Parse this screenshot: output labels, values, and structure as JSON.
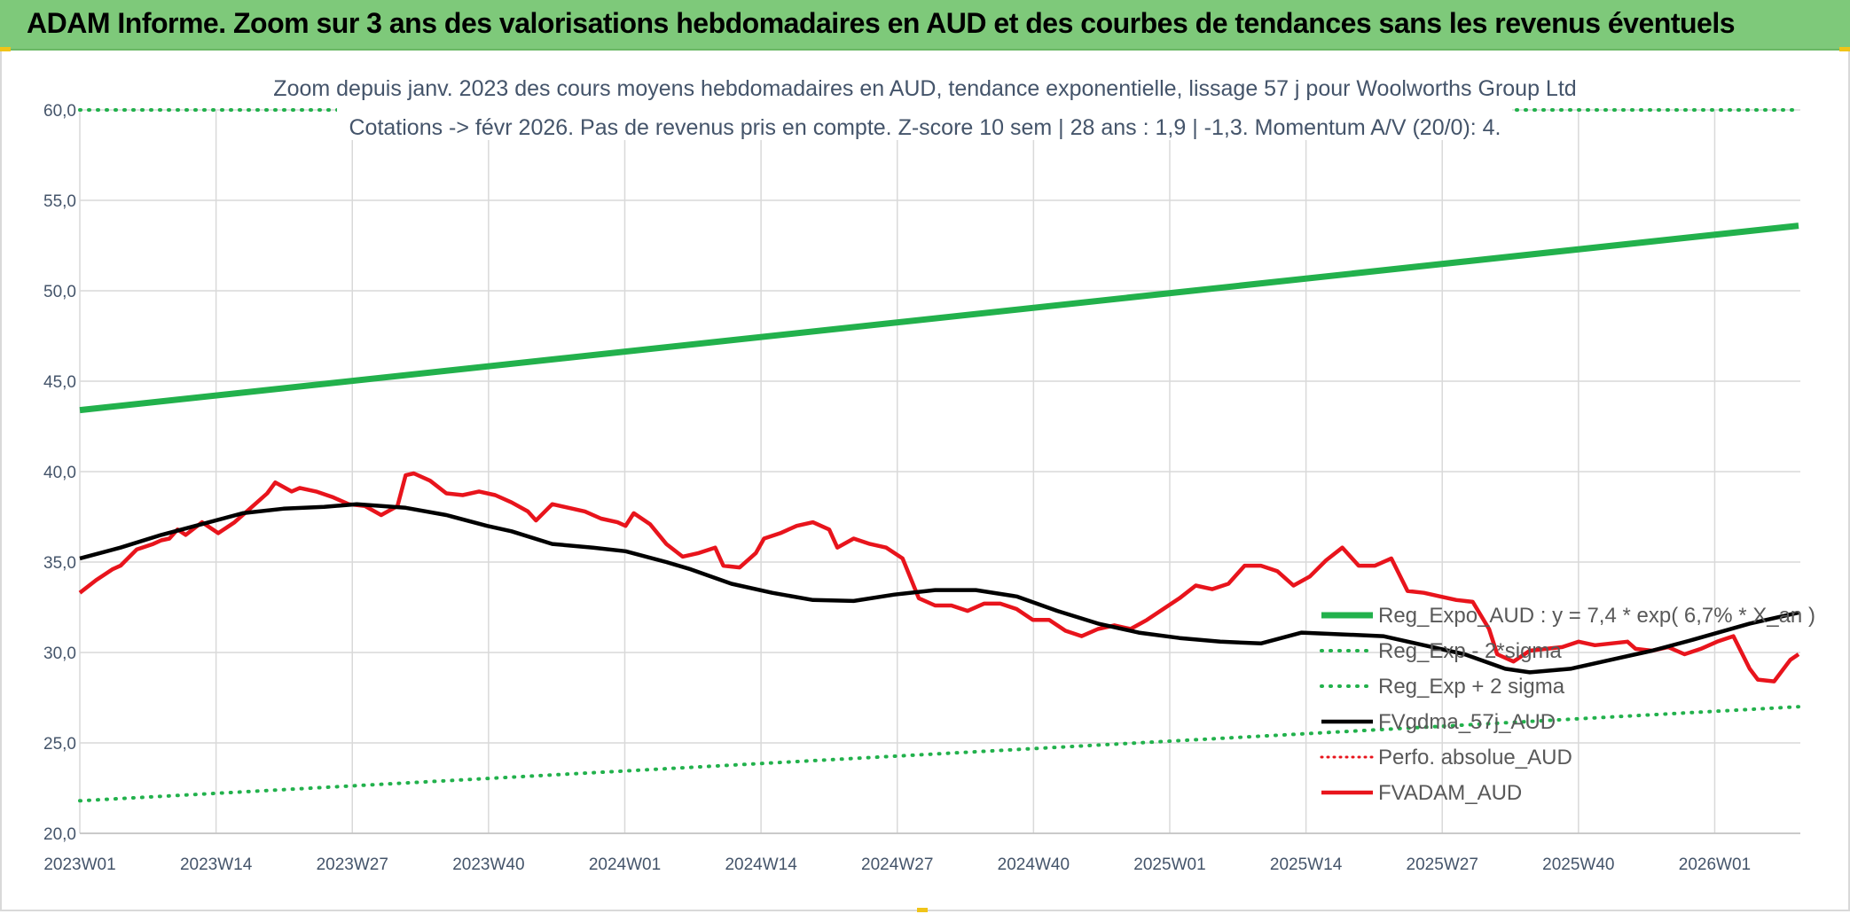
{
  "header": {
    "title": "ADAM Informe. Zoom sur 3 ans des valorisations hebdomadaires en AUD et des courbes de tendances sans les revenus éventuels"
  },
  "colors": {
    "header_bg": "#7ec97a",
    "reg_expo": "#22b14c",
    "sigma": "#22b14c",
    "fvgdma": "#000000",
    "perfo": "#e8141c",
    "fvadam": "#e8141c",
    "grid": "#d9d9d9",
    "text": "#44546a"
  },
  "chart_data": {
    "type": "line",
    "title": "Zoom depuis janv. 2023 des cours moyens hebdomadaires en AUD, tendance exponentielle, lissage 57 j pour Woolworths Group Ltd",
    "subtitle": "Cotations -> févr 2026. Pas de revenus pris en compte. Z-score 10 sem | 28 ans : 1,9 | -1,3. Momentum A/V (20/0): 4.",
    "xlabel": "",
    "ylabel": "",
    "ylim": [
      20,
      60
    ],
    "y_ticks": [
      "20,0",
      "25,0",
      "30,0",
      "35,0",
      "40,0",
      "45,0",
      "50,0",
      "55,0",
      "60,0"
    ],
    "x_ticks": [
      "2023W01",
      "2023W14",
      "2023W27",
      "2023W40",
      "2024W01",
      "2024W14",
      "2024W27",
      "2024W40",
      "2025W01",
      "2025W14",
      "2025W27",
      "2025W40",
      "2026W01"
    ],
    "week_count": 165,
    "grid": true,
    "legend_position": "right",
    "series": [
      {
        "name": "Reg_Expo_AUD : y = 7,4 * exp( 6,7% * X_an )",
        "style": "solid-thick",
        "points": [
          [
            0,
            43.4
          ],
          [
            164,
            53.6
          ]
        ]
      },
      {
        "name": "Reg_Exp - 2*sigma",
        "style": "dotted",
        "points": [
          [
            0,
            21.8
          ],
          [
            164,
            27.0
          ]
        ]
      },
      {
        "name": "Reg_Exp + 2 sigma",
        "style": "dotted",
        "points": [
          [
            0,
            60.0
          ],
          [
            164,
            60.0
          ]
        ]
      },
      {
        "name": "FVgdma_57j_AUD",
        "style": "solid-black",
        "points": [
          [
            0,
            35.2
          ],
          [
            5,
            35.8
          ],
          [
            10,
            36.5
          ],
          [
            15,
            37.1
          ],
          [
            20,
            37.7
          ],
          [
            25,
            37.95
          ],
          [
            30,
            38.05
          ],
          [
            34,
            38.2
          ],
          [
            40,
            38.0
          ],
          [
            45,
            37.6
          ],
          [
            50,
            37.0
          ],
          [
            53,
            36.7
          ],
          [
            58,
            36.0
          ],
          [
            63,
            35.8
          ],
          [
            67,
            35.6
          ],
          [
            72,
            35.0
          ],
          [
            75,
            34.6
          ],
          [
            80,
            33.8
          ],
          [
            85,
            33.3
          ],
          [
            90,
            32.9
          ],
          [
            95,
            32.85
          ],
          [
            100,
            33.2
          ],
          [
            105,
            33.45
          ],
          [
            110,
            33.45
          ],
          [
            115,
            33.1
          ],
          [
            120,
            32.3
          ],
          [
            125,
            31.6
          ],
          [
            130,
            31.1
          ],
          [
            135,
            30.8
          ],
          [
            140,
            30.6
          ],
          [
            145,
            30.5
          ],
          [
            150,
            31.1
          ],
          [
            155,
            31.0
          ],
          [
            160,
            30.9
          ],
          [
            165,
            30.4
          ],
          [
            170,
            29.9
          ],
          [
            175,
            29.1
          ],
          [
            178,
            28.9
          ],
          [
            183,
            29.1
          ],
          [
            188,
            29.6
          ],
          [
            193,
            30.1
          ],
          [
            198,
            30.7
          ],
          [
            205,
            31.6
          ],
          [
            211,
            32.2
          ]
        ]
      },
      {
        "name": "Perfo. absolue_AUD",
        "style": "dotted-red",
        "points": []
      },
      {
        "name": "FVADAM_AUD",
        "style": "solid-red",
        "points": [
          [
            0,
            33.3
          ],
          [
            2,
            34.0
          ],
          [
            4,
            34.6
          ],
          [
            5,
            34.8
          ],
          [
            7,
            35.7
          ],
          [
            9,
            36.0
          ],
          [
            10,
            36.2
          ],
          [
            11,
            36.3
          ],
          [
            12,
            36.8
          ],
          [
            13,
            36.5
          ],
          [
            15,
            37.2
          ],
          [
            17,
            36.6
          ],
          [
            19,
            37.2
          ],
          [
            21,
            38.0
          ],
          [
            23,
            38.8
          ],
          [
            24,
            39.4
          ],
          [
            26,
            38.9
          ],
          [
            27,
            39.1
          ],
          [
            29,
            38.9
          ],
          [
            31,
            38.6
          ],
          [
            33,
            38.2
          ],
          [
            35,
            38.1
          ],
          [
            37,
            37.6
          ],
          [
            39,
            38.1
          ],
          [
            40,
            39.8
          ],
          [
            41,
            39.9
          ],
          [
            43,
            39.5
          ],
          [
            45,
            38.8
          ],
          [
            47,
            38.7
          ],
          [
            49,
            38.9
          ],
          [
            51,
            38.7
          ],
          [
            53,
            38.3
          ],
          [
            55,
            37.8
          ],
          [
            56,
            37.3
          ],
          [
            58,
            38.2
          ],
          [
            60,
            38.0
          ],
          [
            62,
            37.8
          ],
          [
            64,
            37.4
          ],
          [
            66,
            37.2
          ],
          [
            67,
            37.0
          ],
          [
            68,
            37.7
          ],
          [
            70,
            37.1
          ],
          [
            72,
            36.0
          ],
          [
            74,
            35.3
          ],
          [
            76,
            35.5
          ],
          [
            78,
            35.8
          ],
          [
            79,
            34.8
          ],
          [
            81,
            34.7
          ],
          [
            83,
            35.5
          ],
          [
            84,
            36.3
          ],
          [
            86,
            36.6
          ],
          [
            88,
            37.0
          ],
          [
            90,
            37.2
          ],
          [
            92,
            36.8
          ],
          [
            93,
            35.8
          ],
          [
            95,
            36.3
          ],
          [
            97,
            36.0
          ],
          [
            99,
            35.8
          ],
          [
            101,
            35.2
          ],
          [
            103,
            33.0
          ],
          [
            105,
            32.6
          ],
          [
            107,
            32.6
          ],
          [
            109,
            32.3
          ],
          [
            111,
            32.7
          ],
          [
            113,
            32.7
          ],
          [
            115,
            32.4
          ],
          [
            117,
            31.8
          ],
          [
            119,
            31.8
          ],
          [
            121,
            31.2
          ],
          [
            123,
            30.9
          ],
          [
            125,
            31.3
          ],
          [
            127,
            31.5
          ],
          [
            129,
            31.3
          ],
          [
            131,
            31.8
          ],
          [
            133,
            32.4
          ],
          [
            135,
            33.0
          ],
          [
            137,
            33.7
          ],
          [
            139,
            33.5
          ],
          [
            141,
            33.8
          ],
          [
            143,
            34.8
          ],
          [
            145,
            34.8
          ],
          [
            147,
            34.5
          ],
          [
            149,
            33.7
          ],
          [
            151,
            34.2
          ],
          [
            153,
            35.1
          ],
          [
            155,
            35.8
          ],
          [
            157,
            34.8
          ],
          [
            159,
            34.8
          ],
          [
            161,
            35.2
          ],
          [
            163,
            33.4
          ],
          [
            165,
            33.3
          ],
          [
            167,
            33.1
          ],
          [
            169,
            32.9
          ],
          [
            171,
            32.8
          ],
          [
            173,
            31.3
          ],
          [
            174,
            29.9
          ],
          [
            176,
            29.5
          ],
          [
            178,
            30.1
          ],
          [
            180,
            30.2
          ],
          [
            182,
            30.3
          ],
          [
            184,
            30.6
          ],
          [
            186,
            30.4
          ],
          [
            188,
            30.5
          ],
          [
            190,
            30.6
          ],
          [
            191,
            30.2
          ],
          [
            193,
            30.1
          ],
          [
            195,
            30.3
          ],
          [
            197,
            29.9
          ],
          [
            199,
            30.2
          ],
          [
            201,
            30.6
          ],
          [
            203,
            30.9
          ],
          [
            205,
            29.1
          ],
          [
            206,
            28.5
          ],
          [
            208,
            28.4
          ],
          [
            210,
            29.6
          ],
          [
            211,
            29.9
          ]
        ]
      }
    ]
  },
  "legend": [
    {
      "label": "Reg_Expo_AUD : y = 7,4 * exp( 6,7% *  X_an )"
    },
    {
      "label": "Reg_Exp - 2*sigma"
    },
    {
      "label": "Reg_Exp + 2 sigma"
    },
    {
      "label": "FVgdma_57j_AUD"
    },
    {
      "label": "Perfo. absolue_AUD"
    },
    {
      "label": "FVADAM_AUD"
    }
  ]
}
